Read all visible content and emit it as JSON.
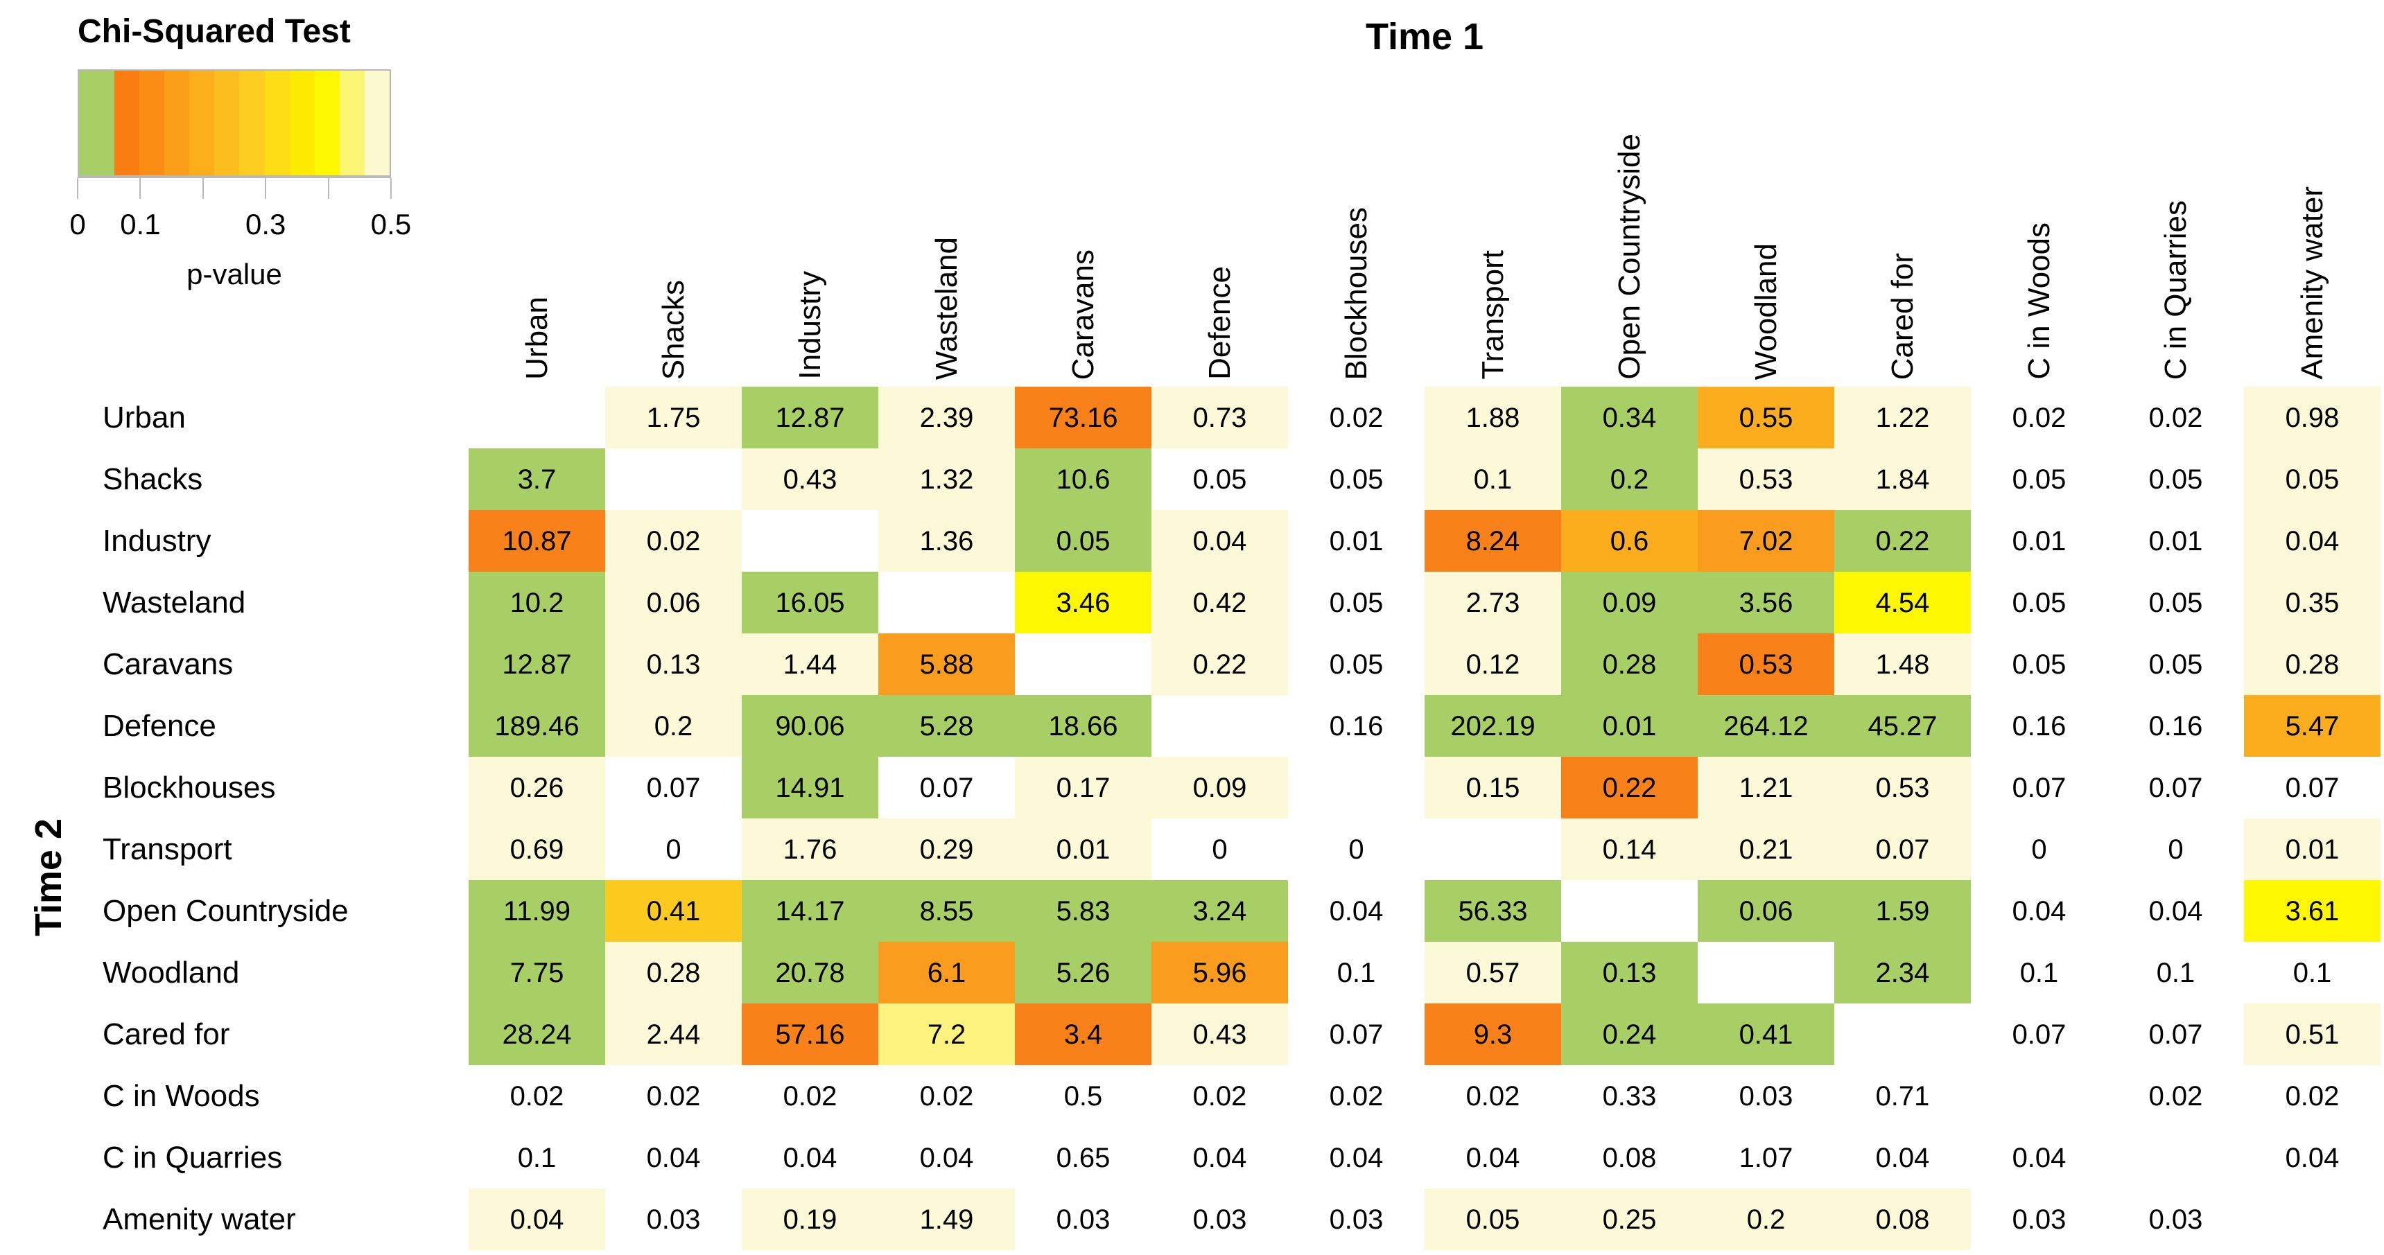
{
  "legend": {
    "title": "Chi-Squared Test",
    "axis_label": "p-value",
    "segments": [
      "#a7cf66",
      "#f97d11",
      "#fa8e15",
      "#fb9e18",
      "#fcae1b",
      "#fcbd1e",
      "#fdcd20",
      "#fedc16",
      "#feeb02",
      "#fdf800",
      "#faf572",
      "#fbf9cf"
    ],
    "green_segment_width_pct": 11.4,
    "ticks": [
      {
        "pos": 0.0,
        "label": "0"
      },
      {
        "pos": 0.2,
        "label": "0.1"
      },
      {
        "pos": 0.4,
        "label": ""
      },
      {
        "pos": 0.6,
        "label": "0.3"
      },
      {
        "pos": 0.8,
        "label": ""
      },
      {
        "pos": 1.0,
        "label": "0.5"
      }
    ]
  },
  "axis_titles": {
    "columns": "Time 1",
    "rows": "Time 2"
  },
  "palette": {
    "white": "#ffffff",
    "cream": "#fbf9d8",
    "green": "#a7cf66",
    "dark_orange": "#f8811a",
    "orange": "#fa9c1d",
    "amber": "#fbad1d",
    "gold": "#fcc91e",
    "yellow": "#fdf800",
    "light_yellow": "#fef37e"
  },
  "chart_data": {
    "type": "heatmap",
    "title": "Chi-Squared Test",
    "legend_label": "p-value",
    "legend_range": [
      0,
      0.5
    ],
    "columns_axis_title": "Time 1",
    "rows_axis_title": "Time 2",
    "note": "Cell numbers are chi-squared statistics; cell background color encodes the p-value (green < ~0.05, orange-to-yellow 0.05-0.5, white/blank for no color). Diagonal cells are empty.",
    "columns": [
      "Urban",
      "Shacks",
      "Industry",
      "Wasteland",
      "Caravans",
      "Defence",
      "Blockhouses",
      "Transport",
      "Open Countryside",
      "Woodland",
      "Cared for",
      "C in Woods",
      "C in Quarries",
      "Amenity water"
    ],
    "rows": [
      {
        "label": "Urban",
        "cells": [
          [
            "",
            "white"
          ],
          [
            "1.75",
            "cream"
          ],
          [
            "12.87",
            "green"
          ],
          [
            "2.39",
            "cream"
          ],
          [
            "73.16",
            "dark_orange"
          ],
          [
            "0.73",
            "cream"
          ],
          [
            "0.02",
            "white"
          ],
          [
            "1.88",
            "cream"
          ],
          [
            "0.34",
            "green"
          ],
          [
            "0.55",
            "amber"
          ],
          [
            "1.22",
            "cream"
          ],
          [
            "0.02",
            "white"
          ],
          [
            "0.02",
            "white"
          ],
          [
            "0.98",
            "cream"
          ]
        ]
      },
      {
        "label": "Shacks",
        "cells": [
          [
            "3.7",
            "green"
          ],
          [
            "",
            "white"
          ],
          [
            "0.43",
            "cream"
          ],
          [
            "1.32",
            "cream"
          ],
          [
            "10.6",
            "green"
          ],
          [
            "0.05",
            "white"
          ],
          [
            "0.05",
            "white"
          ],
          [
            "0.1",
            "cream"
          ],
          [
            "0.2",
            "green"
          ],
          [
            "0.53",
            "cream"
          ],
          [
            "1.84",
            "cream"
          ],
          [
            "0.05",
            "white"
          ],
          [
            "0.05",
            "white"
          ],
          [
            "0.05",
            "cream"
          ]
        ]
      },
      {
        "label": "Industry",
        "cells": [
          [
            "10.87",
            "dark_orange"
          ],
          [
            "0.02",
            "cream"
          ],
          [
            "",
            "white"
          ],
          [
            "1.36",
            "cream"
          ],
          [
            "0.05",
            "green"
          ],
          [
            "0.04",
            "cream"
          ],
          [
            "0.01",
            "white"
          ],
          [
            "8.24",
            "dark_orange"
          ],
          [
            "0.6",
            "amber"
          ],
          [
            "7.02",
            "orange"
          ],
          [
            "0.22",
            "green"
          ],
          [
            "0.01",
            "white"
          ],
          [
            "0.01",
            "white"
          ],
          [
            "0.04",
            "cream"
          ]
        ]
      },
      {
        "label": "Wasteland",
        "cells": [
          [
            "10.2",
            "green"
          ],
          [
            "0.06",
            "cream"
          ],
          [
            "16.05",
            "green"
          ],
          [
            "",
            "white"
          ],
          [
            "3.46",
            "yellow"
          ],
          [
            "0.42",
            "cream"
          ],
          [
            "0.05",
            "white"
          ],
          [
            "2.73",
            "cream"
          ],
          [
            "0.09",
            "green"
          ],
          [
            "3.56",
            "green"
          ],
          [
            "4.54",
            "yellow"
          ],
          [
            "0.05",
            "white"
          ],
          [
            "0.05",
            "white"
          ],
          [
            "0.35",
            "cream"
          ]
        ]
      },
      {
        "label": "Caravans",
        "cells": [
          [
            "12.87",
            "green"
          ],
          [
            "0.13",
            "cream"
          ],
          [
            "1.44",
            "cream"
          ],
          [
            "5.88",
            "orange"
          ],
          [
            "",
            "white"
          ],
          [
            "0.22",
            "cream"
          ],
          [
            "0.05",
            "white"
          ],
          [
            "0.12",
            "cream"
          ],
          [
            "0.28",
            "green"
          ],
          [
            "0.53",
            "dark_orange"
          ],
          [
            "1.48",
            "cream"
          ],
          [
            "0.05",
            "white"
          ],
          [
            "0.05",
            "white"
          ],
          [
            "0.28",
            "cream"
          ]
        ]
      },
      {
        "label": "Defence",
        "cells": [
          [
            "189.46",
            "green"
          ],
          [
            "0.2",
            "cream"
          ],
          [
            "90.06",
            "green"
          ],
          [
            "5.28",
            "green"
          ],
          [
            "18.66",
            "green"
          ],
          [
            "",
            "white"
          ],
          [
            "0.16",
            "white"
          ],
          [
            "202.19",
            "green"
          ],
          [
            "0.01",
            "green"
          ],
          [
            "264.12",
            "green"
          ],
          [
            "45.27",
            "green"
          ],
          [
            "0.16",
            "white"
          ],
          [
            "0.16",
            "white"
          ],
          [
            "5.47",
            "amber"
          ]
        ]
      },
      {
        "label": "Blockhouses",
        "cells": [
          [
            "0.26",
            "cream"
          ],
          [
            "0.07",
            "white"
          ],
          [
            "14.91",
            "green"
          ],
          [
            "0.07",
            "white"
          ],
          [
            "0.17",
            "cream"
          ],
          [
            "0.09",
            "cream"
          ],
          [
            "",
            "white"
          ],
          [
            "0.15",
            "cream"
          ],
          [
            "0.22",
            "dark_orange"
          ],
          [
            "1.21",
            "cream"
          ],
          [
            "0.53",
            "cream"
          ],
          [
            "0.07",
            "white"
          ],
          [
            "0.07",
            "white"
          ],
          [
            "0.07",
            "white"
          ]
        ]
      },
      {
        "label": "Transport",
        "cells": [
          [
            "0.69",
            "cream"
          ],
          [
            "0",
            "white"
          ],
          [
            "1.76",
            "cream"
          ],
          [
            "0.29",
            "cream"
          ],
          [
            "0.01",
            "cream"
          ],
          [
            "0",
            "white"
          ],
          [
            "0",
            "white"
          ],
          [
            "",
            "white"
          ],
          [
            "0.14",
            "cream"
          ],
          [
            "0.21",
            "cream"
          ],
          [
            "0.07",
            "cream"
          ],
          [
            "0",
            "white"
          ],
          [
            "0",
            "white"
          ],
          [
            "0.01",
            "cream"
          ]
        ]
      },
      {
        "label": "Open Countryside",
        "cells": [
          [
            "11.99",
            "green"
          ],
          [
            "0.41",
            "gold"
          ],
          [
            "14.17",
            "green"
          ],
          [
            "8.55",
            "green"
          ],
          [
            "5.83",
            "green"
          ],
          [
            "3.24",
            "green"
          ],
          [
            "0.04",
            "white"
          ],
          [
            "56.33",
            "green"
          ],
          [
            "",
            "white"
          ],
          [
            "0.06",
            "green"
          ],
          [
            "1.59",
            "green"
          ],
          [
            "0.04",
            "white"
          ],
          [
            "0.04",
            "white"
          ],
          [
            "3.61",
            "yellow"
          ]
        ]
      },
      {
        "label": "Woodland",
        "cells": [
          [
            "7.75",
            "green"
          ],
          [
            "0.28",
            "cream"
          ],
          [
            "20.78",
            "green"
          ],
          [
            "6.1",
            "orange"
          ],
          [
            "5.26",
            "green"
          ],
          [
            "5.96",
            "orange"
          ],
          [
            "0.1",
            "white"
          ],
          [
            "0.57",
            "cream"
          ],
          [
            "0.13",
            "green"
          ],
          [
            "",
            "white"
          ],
          [
            "2.34",
            "green"
          ],
          [
            "0.1",
            "white"
          ],
          [
            "0.1",
            "white"
          ],
          [
            "0.1",
            "white"
          ]
        ]
      },
      {
        "label": "Cared for",
        "cells": [
          [
            "28.24",
            "green"
          ],
          [
            "2.44",
            "cream"
          ],
          [
            "57.16",
            "dark_orange"
          ],
          [
            "7.2",
            "light_yellow"
          ],
          [
            "3.4",
            "dark_orange"
          ],
          [
            "0.43",
            "cream"
          ],
          [
            "0.07",
            "white"
          ],
          [
            "9.3",
            "dark_orange"
          ],
          [
            "0.24",
            "green"
          ],
          [
            "0.41",
            "green"
          ],
          [
            "",
            "white"
          ],
          [
            "0.07",
            "white"
          ],
          [
            "0.07",
            "white"
          ],
          [
            "0.51",
            "cream"
          ]
        ]
      },
      {
        "label": "C in Woods",
        "cells": [
          [
            "0.02",
            "white"
          ],
          [
            "0.02",
            "white"
          ],
          [
            "0.02",
            "white"
          ],
          [
            "0.02",
            "white"
          ],
          [
            "0.5",
            "white"
          ],
          [
            "0.02",
            "white"
          ],
          [
            "0.02",
            "white"
          ],
          [
            "0.02",
            "white"
          ],
          [
            "0.33",
            "white"
          ],
          [
            "0.03",
            "white"
          ],
          [
            "0.71",
            "white"
          ],
          [
            "",
            "white"
          ],
          [
            "0.02",
            "white"
          ],
          [
            "0.02",
            "white"
          ]
        ]
      },
      {
        "label": "C in Quarries",
        "cells": [
          [
            "0.1",
            "white"
          ],
          [
            "0.04",
            "white"
          ],
          [
            "0.04",
            "white"
          ],
          [
            "0.04",
            "white"
          ],
          [
            "0.65",
            "white"
          ],
          [
            "0.04",
            "white"
          ],
          [
            "0.04",
            "white"
          ],
          [
            "0.04",
            "white"
          ],
          [
            "0.08",
            "white"
          ],
          [
            "1.07",
            "white"
          ],
          [
            "0.04",
            "white"
          ],
          [
            "0.04",
            "white"
          ],
          [
            "",
            "white"
          ],
          [
            "0.04",
            "white"
          ]
        ]
      },
      {
        "label": "Amenity water",
        "cells": [
          [
            "0.04",
            "cream"
          ],
          [
            "0.03",
            "white"
          ],
          [
            "0.19",
            "cream"
          ],
          [
            "1.49",
            "cream"
          ],
          [
            "0.03",
            "white"
          ],
          [
            "0.03",
            "white"
          ],
          [
            "0.03",
            "white"
          ],
          [
            "0.05",
            "cream"
          ],
          [
            "0.25",
            "cream"
          ],
          [
            "0.2",
            "cream"
          ],
          [
            "0.08",
            "cream"
          ],
          [
            "0.03",
            "white"
          ],
          [
            "0.03",
            "white"
          ],
          [
            "",
            "white"
          ]
        ]
      }
    ]
  }
}
